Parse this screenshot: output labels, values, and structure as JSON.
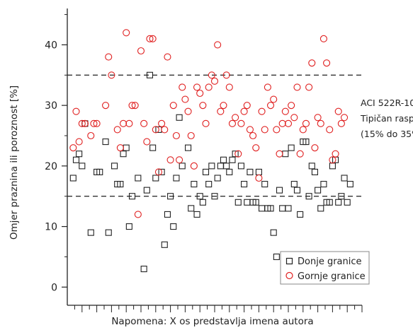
{
  "chart_data": {
    "type": "scatter",
    "xlabel": "Napomena: X os predstavlja imena autora",
    "ylabel": "Omjer praznina ili poroznost  [%]",
    "ylim": [
      -3,
      46
    ],
    "yticks": [
      0,
      10,
      20,
      30,
      40
    ],
    "ytick_labels": [
      "0",
      "10",
      "20",
      "30",
      "40"
    ],
    "x_tick_count": 40,
    "reference_lines": [
      {
        "y": 15,
        "style": "dashed"
      },
      {
        "y": 35,
        "style": "dashed"
      }
    ],
    "annotation": {
      "lines": [
        "ACI 522R-10",
        "Tipičan raspon",
        "(15% do 35%)"
      ]
    },
    "legend": {
      "position": "bottom-right",
      "entries": [
        {
          "label": "Donje granice",
          "marker": "square",
          "color": "#222222"
        },
        {
          "label": "Gornje granice",
          "marker": "circle",
          "color": "#e02020"
        }
      ]
    },
    "series": [
      {
        "name": "Donje granice",
        "marker": "square",
        "color": "#222222",
        "x": [
          2,
          3,
          4,
          5,
          6,
          8,
          10,
          11,
          13,
          14,
          16,
          17,
          18,
          19,
          20,
          21,
          22,
          24,
          26,
          27,
          28,
          29,
          30,
          31,
          32,
          33,
          34,
          35,
          36,
          37,
          38,
          39,
          41,
          42,
          43,
          44,
          45,
          46,
          47,
          48,
          49,
          50,
          51,
          52,
          53,
          54,
          55,
          56,
          57,
          58,
          59,
          60,
          61,
          62,
          63,
          64,
          65,
          66,
          67,
          68,
          69,
          70,
          71,
          72,
          73,
          74,
          75,
          76,
          77,
          78,
          79,
          80,
          81,
          82,
          83,
          84,
          85,
          86,
          87,
          88,
          89,
          90,
          91,
          92,
          93,
          94,
          95,
          96
        ],
        "y": [
          18,
          21,
          22,
          20,
          27,
          9,
          19,
          19,
          24,
          9,
          20,
          17,
          17,
          22,
          23,
          10,
          15,
          18,
          3,
          16,
          35,
          23,
          18,
          26,
          19,
          7,
          12,
          15,
          10,
          18,
          28,
          20,
          23,
          13,
          17,
          12,
          15,
          14,
          19,
          17,
          20,
          15,
          18,
          20,
          21,
          20,
          19,
          21,
          22,
          14,
          20,
          17,
          14,
          19,
          14,
          14,
          19,
          13,
          17,
          13,
          13,
          9,
          5,
          16,
          13,
          22,
          13,
          23,
          17,
          16,
          12,
          24,
          24,
          15,
          20,
          19,
          16,
          13,
          17,
          14,
          14,
          20,
          21,
          14,
          15,
          18,
          14,
          17
        ]
      },
      {
        "name": "Gornje granice",
        "marker": "circle",
        "color": "#e02020",
        "x": [
          2,
          3,
          4,
          5,
          6,
          8,
          9,
          10,
          13,
          14,
          15,
          17,
          18,
          19,
          20,
          21,
          22,
          23,
          24,
          25,
          26,
          27,
          28,
          29,
          30,
          31,
          32,
          33,
          34,
          35,
          36,
          37,
          38,
          39,
          40,
          41,
          42,
          43,
          44,
          45,
          46,
          47,
          48,
          49,
          50,
          51,
          52,
          53,
          54,
          55,
          56,
          57,
          58,
          59,
          60,
          61,
          62,
          63,
          64,
          65,
          66,
          67,
          68,
          69,
          70,
          71,
          72,
          73,
          74,
          75,
          76,
          77,
          78,
          79,
          80,
          81,
          82,
          83,
          84,
          85,
          86,
          87,
          88,
          89,
          90,
          91,
          92,
          93,
          94
        ],
        "y": [
          23,
          29,
          24,
          27,
          27,
          25,
          27,
          27,
          30,
          38,
          35,
          26,
          23,
          27,
          42,
          27,
          30,
          30,
          12,
          39,
          27,
          24,
          41,
          41,
          26,
          19,
          27,
          26,
          38,
          21,
          30,
          25,
          21,
          33,
          31,
          29,
          25,
          20,
          33,
          32,
          30,
          27,
          33,
          35,
          34,
          40,
          29,
          30,
          35,
          33,
          27,
          28,
          22,
          27,
          29,
          30,
          26,
          25,
          23,
          18,
          29,
          26,
          33,
          30,
          31,
          26,
          22,
          27,
          29,
          27,
          30,
          28,
          33,
          22,
          26,
          27,
          33,
          37,
          23,
          28,
          27,
          41,
          37,
          26,
          21,
          22,
          29,
          27,
          28
        ]
      }
    ]
  }
}
